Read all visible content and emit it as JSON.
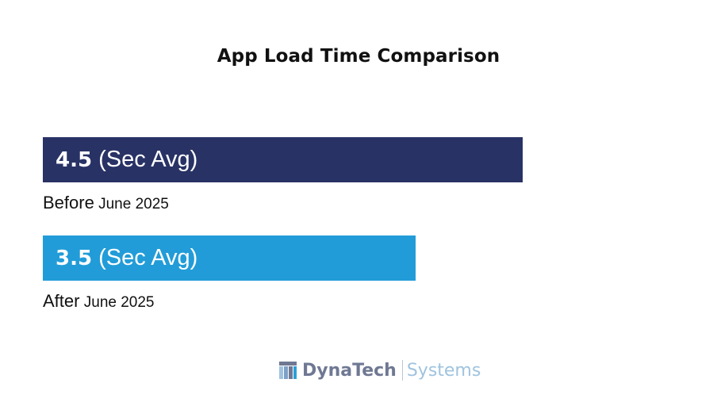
{
  "chart_data": {
    "type": "bar",
    "orientation": "horizontal",
    "title": "App Load Time Comparison",
    "series": [
      {
        "value": 4.5,
        "value_text": "4.5",
        "unit_text": "(Sec Avg)",
        "category_main": "Before",
        "category_sub": "June 2025",
        "color": "#283265"
      },
      {
        "value": 3.5,
        "value_text": "3.5",
        "unit_text": "(Sec Avg)",
        "category_main": "After",
        "category_sub": "June 2025",
        "color": "#229cd8"
      }
    ],
    "xlim": [
      0,
      6.1
    ],
    "grid": false,
    "legend": "none"
  },
  "logo": {
    "name": "DynaTech",
    "sub": "Systems",
    "icon": "dynatech-logo-icon"
  }
}
